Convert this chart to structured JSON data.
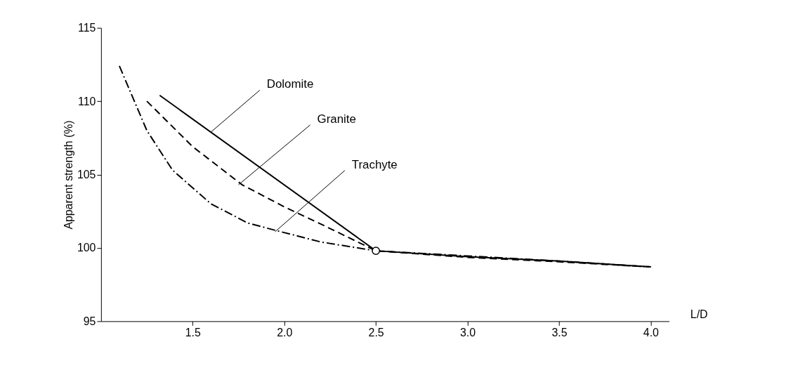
{
  "chart_data": {
    "type": "line",
    "xlabel": "L/D",
    "ylabel": "Apparent strength (%)",
    "xlim": [
      1.0,
      4.1
    ],
    "ylim": [
      95,
      115
    ],
    "xticks": [
      1.5,
      {
        "value": 2,
        "label": "2.0"
      },
      2.5,
      {
        "value": 3,
        "label": "3.0"
      },
      3.5,
      {
        "value": 4,
        "label": "4.0"
      }
    ],
    "yticks": [
      95,
      100,
      105,
      110,
      115
    ],
    "grid": false,
    "marker": "none",
    "series": [
      {
        "color": "#000000",
        "line_style": "solid",
        "x": [
          1.32,
          2.5,
          3.0,
          3.5,
          4.0
        ],
        "values": [
          110.4,
          99.8,
          99.4,
          99.1,
          98.7
        ]
      },
      {
        "color": "#000000",
        "line_style": "dashed",
        "x": [
          1.25,
          1.5,
          1.77,
          2.0,
          2.22,
          2.5,
          3.0,
          3.5,
          4.0
        ],
        "values": [
          110.0,
          106.9,
          104.3,
          102.8,
          101.5,
          99.8,
          99.35,
          99.05,
          98.7
        ]
      },
      {
        "color": "#000000",
        "line_style": "dashed-dotted",
        "x": [
          1.1,
          1.25,
          1.39,
          1.6,
          1.8,
          1.95,
          2.2,
          2.5,
          3.0,
          3.5,
          4.0
        ],
        "values": [
          112.4,
          108.0,
          105.3,
          103.0,
          101.7,
          101.2,
          100.4,
          99.8,
          99.45,
          99.1,
          98.7
        ]
      },
      {
        "type": "scatter",
        "marker": "circle",
        "color": "#000000",
        "x": [
          2.5
        ],
        "values": [
          99.8
        ]
      }
    ],
    "annotations": [
      {
        "text": "Dolomite",
        "x": 1.6,
        "y": 107.9
      },
      {
        "text": "Granite",
        "x": 1.75,
        "y": 104.3
      },
      {
        "text": "Trachyte",
        "x": 1.95,
        "y": 101.1
      }
    ]
  }
}
